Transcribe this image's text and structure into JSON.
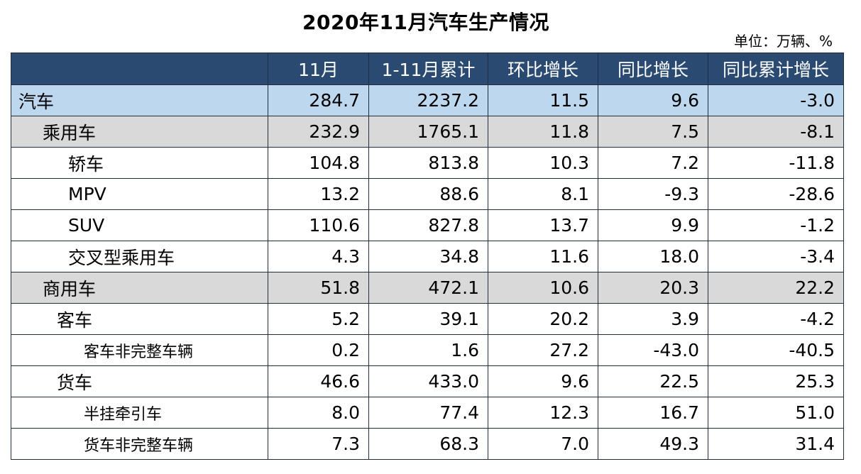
{
  "title": "2020年11月汽车生产情况",
  "unit": "单位：万辆、%",
  "chart_data": {
    "type": "table",
    "columns": [
      "",
      "11月",
      "1-11月累计",
      "环比增长",
      "同比增长",
      "同比累计增长"
    ],
    "rows": [
      {
        "label": "汽车",
        "level": 0,
        "values": [
          "284.7",
          "2237.2",
          "11.5",
          "9.6",
          "-3.0"
        ]
      },
      {
        "label": "乘用车",
        "level": 1,
        "values": [
          "232.9",
          "1765.1",
          "11.8",
          "7.5",
          "-8.1"
        ]
      },
      {
        "label": "轿车",
        "level": 2,
        "values": [
          "104.8",
          "813.8",
          "10.3",
          "7.2",
          "-11.8"
        ]
      },
      {
        "label": "MPV",
        "level": 2,
        "values": [
          "13.2",
          "88.6",
          "8.1",
          "-9.3",
          "-28.6"
        ]
      },
      {
        "label": "SUV",
        "level": 2,
        "values": [
          "110.6",
          "827.8",
          "13.7",
          "9.9",
          "-1.2"
        ]
      },
      {
        "label": "交叉型乘用车",
        "level": 2,
        "values": [
          "4.3",
          "34.8",
          "11.6",
          "18.0",
          "-3.4"
        ]
      },
      {
        "label": "商用车",
        "level": 1,
        "values": [
          "51.8",
          "472.1",
          "10.6",
          "20.3",
          "22.2"
        ]
      },
      {
        "label": "客车",
        "level": "sub",
        "values": [
          "5.2",
          "39.1",
          "20.2",
          "3.9",
          "-4.2"
        ]
      },
      {
        "label": "客车非完整车辆",
        "level": 3,
        "values": [
          "0.2",
          "1.6",
          "27.2",
          "-43.0",
          "-40.5"
        ]
      },
      {
        "label": "货车",
        "level": "sub",
        "values": [
          "46.6",
          "433.0",
          "9.6",
          "22.5",
          "25.3"
        ]
      },
      {
        "label": "半挂牵引车",
        "level": 3,
        "values": [
          "8.0",
          "77.4",
          "12.3",
          "16.7",
          "51.0"
        ]
      },
      {
        "label": "货车非完整车辆",
        "level": 3,
        "values": [
          "7.3",
          "68.3",
          "7.0",
          "49.3",
          "31.4"
        ]
      }
    ]
  }
}
